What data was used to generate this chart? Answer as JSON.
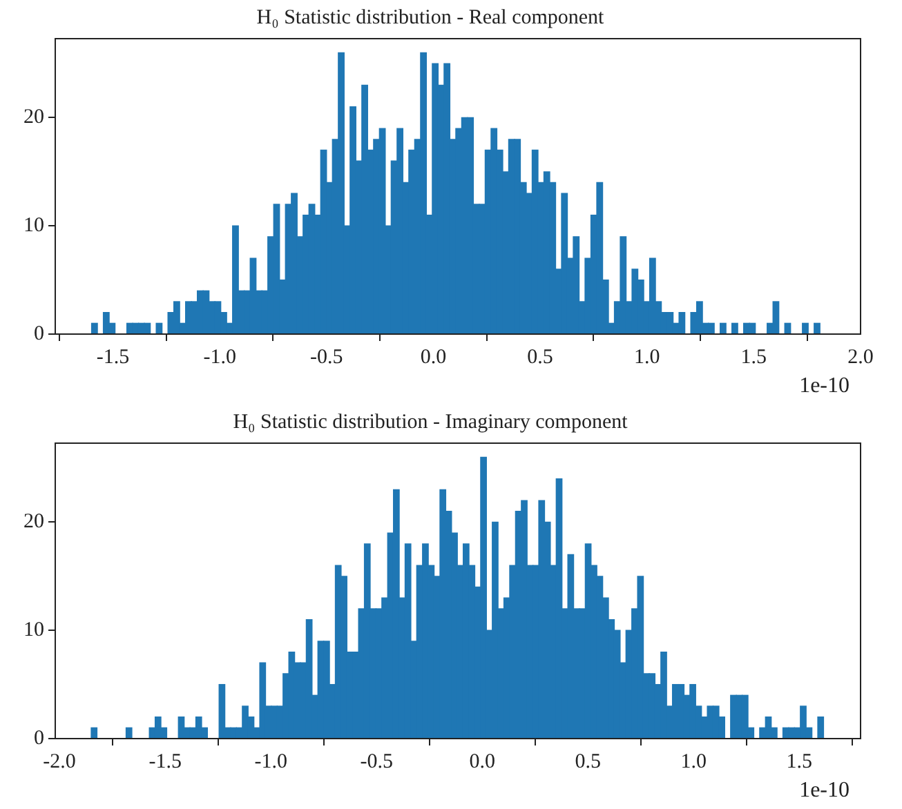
{
  "chart_data": [
    {
      "type": "histogram",
      "title": "H₀ Statistic distribution - Real component",
      "color": "#1f77b4",
      "bins": [
        -1.6,
        -1.5725,
        -1.545,
        -1.5175,
        -1.49,
        -1.4625,
        -1.435,
        -1.4075,
        -1.38,
        -1.3525,
        -1.325,
        -1.2975,
        -1.27,
        -1.2425,
        -1.215,
        -1.1875,
        -1.16,
        -1.1325,
        -1.105,
        -1.0775,
        -1.05,
        -1.0225,
        -0.995,
        -0.9675,
        -0.94,
        -0.9125,
        -0.885,
        -0.8575,
        -0.83,
        -0.8025,
        -0.775,
        -0.7475,
        -0.72,
        -0.6925,
        -0.665,
        -0.6375,
        -0.61,
        -0.5825,
        -0.555,
        -0.5275,
        -0.5,
        -0.4725,
        -0.445,
        -0.4175,
        -0.39,
        -0.3625,
        -0.335,
        -0.3075,
        -0.28,
        -0.2525,
        -0.225,
        -0.1975,
        -0.17,
        -0.1425,
        -0.115,
        -0.0875,
        -0.06,
        -0.0325,
        -0.005,
        0.0225,
        0.05,
        0.0775,
        0.105,
        0.1325,
        0.16,
        0.1875,
        0.215,
        0.2425,
        0.27,
        0.2975,
        0.325,
        0.3525,
        0.38,
        0.4075,
        0.435,
        0.4625,
        0.49,
        0.5175,
        0.545,
        0.5725,
        0.6,
        0.6275,
        0.655,
        0.6825,
        0.71,
        0.7375,
        0.765,
        0.7925,
        0.82,
        0.8475,
        0.875,
        0.9025,
        0.93,
        0.9575,
        0.985,
        1.0125,
        1.04,
        1.0675,
        1.095,
        1.1225,
        1.15,
        1.1775,
        1.205,
        1.2325,
        1.26,
        1.2875,
        1.315,
        1.3425,
        1.37,
        1.3975,
        1.425,
        1.4525,
        1.48,
        1.5075,
        1.535,
        1.5625,
        1.59,
        1.6175,
        1.645,
        1.6725,
        1.7,
        1.7275,
        1.755,
        1.7825,
        1.81
      ],
      "values": [
        1,
        0,
        2,
        1,
        0,
        0,
        1,
        1,
        1,
        1,
        0,
        1,
        0,
        2,
        3,
        1,
        3,
        3,
        4,
        4,
        3,
        3,
        2,
        1,
        10,
        4,
        4,
        7,
        4,
        4,
        9,
        12,
        5,
        12,
        13,
        9,
        11,
        12,
        11,
        17,
        14,
        18,
        26,
        10,
        21,
        16,
        23,
        17,
        18,
        19,
        10,
        16,
        19,
        14,
        17,
        18,
        26,
        11,
        25,
        23,
        25,
        18,
        19,
        20,
        20,
        12,
        12,
        17,
        19,
        17,
        15,
        18,
        18,
        14,
        13,
        17,
        14,
        15,
        14,
        6,
        13,
        7,
        9,
        3,
        7,
        11,
        14,
        5,
        1,
        3,
        9,
        3,
        6,
        5,
        3,
        7,
        3,
        2,
        2,
        1,
        2,
        0,
        2,
        3,
        1,
        1,
        0,
        1,
        0,
        1,
        0,
        1,
        1,
        0,
        0,
        1,
        3,
        0,
        1,
        0,
        0,
        1,
        0,
        1
      ],
      "xlim": [
        -1.77,
        2.0
      ],
      "xticks": [
        {
          "value": -1.5,
          "label": "-1.5"
        },
        {
          "value": -1.0,
          "label": "-1.0"
        },
        {
          "value": -0.5,
          "label": "-0.5"
        },
        {
          "value": 0,
          "label": "0.0"
        },
        {
          "value": 0.5,
          "label": "0.5"
        },
        {
          "value": 1.0,
          "label": "1.0"
        },
        {
          "value": 1.5,
          "label": "1.5"
        },
        {
          "value": 2.0,
          "label": "2.0"
        }
      ],
      "ylim": [
        0,
        27.3
      ],
      "yticks": [
        0,
        10,
        20
      ],
      "annotations": [
        "1e-10"
      ]
    },
    {
      "type": "histogram",
      "title": "H₀ Statistic distribution - Imaginary component",
      "color": "#1f77b4",
      "bins": [
        -1.85,
        -1.8225,
        -1.795,
        -1.7675,
        -1.74,
        -1.7125,
        -1.685,
        -1.6575,
        -1.63,
        -1.6025,
        -1.575,
        -1.5475,
        -1.52,
        -1.4925,
        -1.465,
        -1.4375,
        -1.41,
        -1.3825,
        -1.355,
        -1.3275,
        -1.3,
        -1.2725,
        -1.245,
        -1.2175,
        -1.19,
        -1.1625,
        -1.135,
        -1.1075,
        -1.08,
        -1.0525,
        -1.025,
        -0.9975,
        -0.97,
        -0.9425,
        -0.915,
        -0.8875,
        -0.86,
        -0.8325,
        -0.805,
        -0.7775,
        -0.75,
        -0.7225,
        -0.695,
        -0.6675,
        -0.64,
        -0.6125,
        -0.585,
        -0.5575,
        -0.53,
        -0.5025,
        -0.475,
        -0.4475,
        -0.42,
        -0.3925,
        -0.365,
        -0.3375,
        -0.31,
        -0.2825,
        -0.255,
        -0.2275,
        -0.2,
        -0.1725,
        -0.145,
        -0.1175,
        -0.09,
        -0.0625,
        -0.035,
        -0.0075,
        0.02,
        0.0475,
        0.075,
        0.1025,
        0.13,
        0.1575,
        0.185,
        0.2125,
        0.24,
        0.2675,
        0.295,
        0.3225,
        0.35,
        0.3775,
        0.405,
        0.4325,
        0.46,
        0.4875,
        0.515,
        0.5425,
        0.57,
        0.5975,
        0.625,
        0.6525,
        0.68,
        0.7075,
        0.735,
        0.7625,
        0.79,
        0.8175,
        0.845,
        0.8725,
        0.9,
        0.9275,
        0.955,
        0.9825,
        1.01,
        1.0375,
        1.065,
        1.0925,
        1.12,
        1.1475,
        1.175,
        1.2025,
        1.23,
        1.2575,
        1.285,
        1.3125,
        1.34,
        1.3675,
        1.395,
        1.4225,
        1.45,
        1.4775,
        1.505,
        1.5325,
        1.56,
        1.5875,
        1.615
      ],
      "values": [
        1,
        0,
        0,
        0,
        0,
        0,
        1,
        0,
        0,
        0,
        1,
        2,
        1,
        0,
        0,
        2,
        1,
        1,
        2,
        1,
        0,
        0,
        5,
        1,
        1,
        1,
        3,
        2,
        1,
        7,
        3,
        3,
        3,
        6,
        8,
        7,
        7,
        11,
        4,
        9,
        9,
        5,
        16,
        15,
        8,
        8,
        12,
        18,
        12,
        12,
        13,
        19,
        23,
        13,
        18,
        9,
        16,
        18,
        16,
        15,
        23,
        21,
        19,
        16,
        18,
        16,
        14,
        26,
        10,
        20,
        12,
        13,
        16,
        21,
        22,
        16,
        16,
        22,
        20,
        16,
        24,
        12,
        17,
        12,
        12,
        18,
        16,
        15,
        13,
        11,
        10,
        7,
        10,
        12,
        15,
        6,
        6,
        5,
        8,
        3,
        5,
        5,
        4,
        5,
        3,
        2,
        3,
        3,
        2,
        0,
        4,
        4,
        4,
        1,
        0,
        1,
        2,
        1,
        0,
        1,
        1,
        1,
        3,
        1,
        0,
        2
      ],
      "xlim": [
        -2.02,
        1.79
      ],
      "xticks": [
        {
          "value": -2.0,
          "label": "-2.0"
        },
        {
          "value": -1.5,
          "label": "-1.5"
        },
        {
          "value": -1.0,
          "label": "-1.0"
        },
        {
          "value": -0.5,
          "label": "-0.5"
        },
        {
          "value": 0,
          "label": "0.0"
        },
        {
          "value": 0.5,
          "label": "0.5"
        },
        {
          "value": 1.0,
          "label": "1.0"
        },
        {
          "value": 1.5,
          "label": "1.5"
        }
      ],
      "ylim": [
        0,
        27.3
      ],
      "yticks": [
        0,
        10,
        20
      ],
      "annotations": [
        "1e-10"
      ]
    }
  ]
}
